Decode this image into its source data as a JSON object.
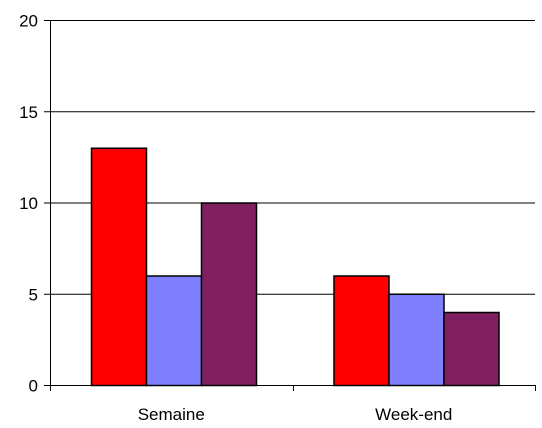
{
  "chart_data": {
    "type": "bar",
    "categories": [
      "Semaine",
      "Week-end"
    ],
    "series": [
      {
        "color": "#ff0000",
        "values": [
          13,
          6
        ]
      },
      {
        "color": "#8080ff",
        "values": [
          6,
          5
        ]
      },
      {
        "color": "#802060",
        "values": [
          10,
          4
        ]
      }
    ],
    "ylim": [
      0,
      20
    ],
    "yticks": [
      0,
      5,
      10,
      15,
      20
    ],
    "grid": true,
    "legend": "none"
  }
}
